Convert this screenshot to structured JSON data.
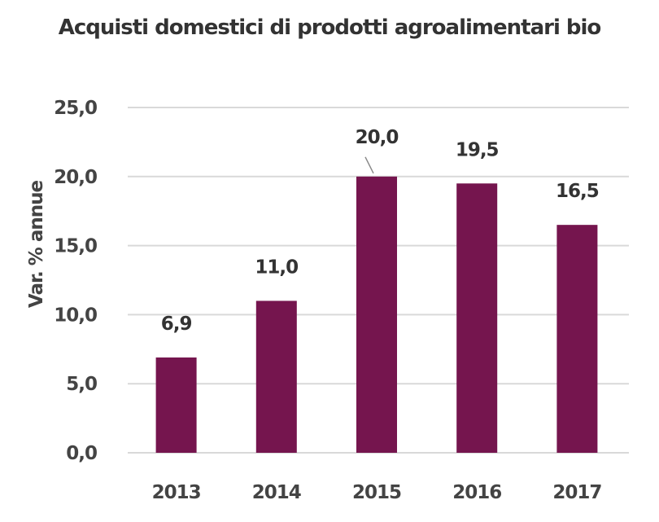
{
  "chart_data": {
    "type": "bar",
    "title": "Acquisti domestici di prodotti agroalimentari bio",
    "xlabel": "",
    "ylabel": "Var. % annue",
    "categories": [
      "2013",
      "2014",
      "2015",
      "2016",
      "2017"
    ],
    "values": [
      6.9,
      11.0,
      20.0,
      19.5,
      16.5
    ],
    "value_labels": [
      "6,9",
      "11,0",
      "20,0",
      "19,5",
      "16,5"
    ],
    "ylim": [
      0,
      25
    ],
    "yticks": [
      0,
      5,
      10,
      15,
      20,
      25
    ],
    "ytick_labels": [
      "0,0",
      "5,0",
      "10,0",
      "15,0",
      "20,0",
      "25,0"
    ],
    "grid": true,
    "legend": "none",
    "bar_color": "#75154e",
    "grid_color": "#d9d9d9"
  }
}
